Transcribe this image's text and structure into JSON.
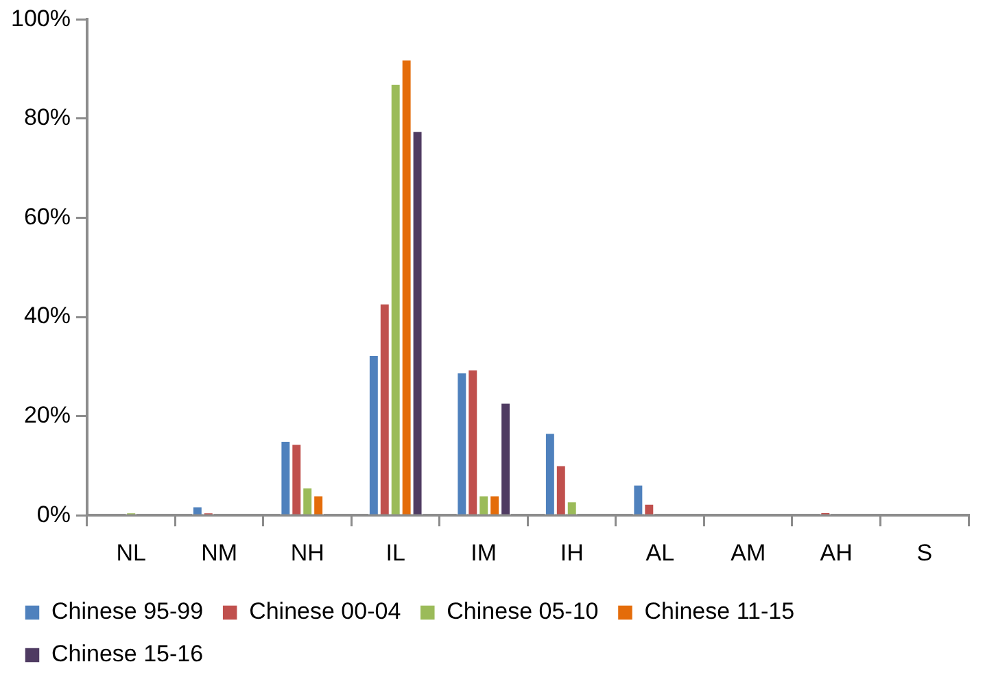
{
  "chart_data": {
    "type": "bar",
    "categories": [
      "NL",
      "NM",
      "NH",
      "IL",
      "IM",
      "IH",
      "AL",
      "AM",
      "AH",
      "S"
    ],
    "series": [
      {
        "name": "Chinese 95-99",
        "color": "#4f81bd",
        "values": [
          0,
          1.9,
          15.1,
          32.4,
          28.9,
          16.7,
          6.3,
          0,
          0,
          0
        ]
      },
      {
        "name": "Chinese 00-04",
        "color": "#c0504d",
        "values": [
          0,
          0.6,
          14.5,
          42.8,
          29.5,
          10.2,
          2.4,
          0,
          0.7,
          0
        ]
      },
      {
        "name": "Chinese 05-10",
        "color": "#9bbb59",
        "values": [
          0.6,
          0,
          5.7,
          87.1,
          4.1,
          2.9,
          0,
          0,
          0,
          0
        ]
      },
      {
        "name": "Chinese 11-15",
        "color": "#e46c0a",
        "values": [
          0,
          0,
          4.1,
          92.0,
          4.1,
          0,
          0,
          0,
          0,
          0
        ]
      },
      {
        "name": "Chinese 15-16",
        "color": "#4f3b62",
        "values": [
          0,
          0,
          0,
          77.6,
          22.8,
          0,
          0,
          0,
          0,
          0
        ]
      }
    ],
    "ylim": [
      0,
      100
    ],
    "yticks": [
      {
        "value": 0,
        "label": "0%"
      },
      {
        "value": 20,
        "label": "20%"
      },
      {
        "value": 40,
        "label": "40%"
      },
      {
        "value": 60,
        "label": "60%"
      },
      {
        "value": 80,
        "label": "80%"
      },
      {
        "value": 100,
        "label": "100%"
      }
    ],
    "grid": false,
    "legend": "bottom"
  }
}
